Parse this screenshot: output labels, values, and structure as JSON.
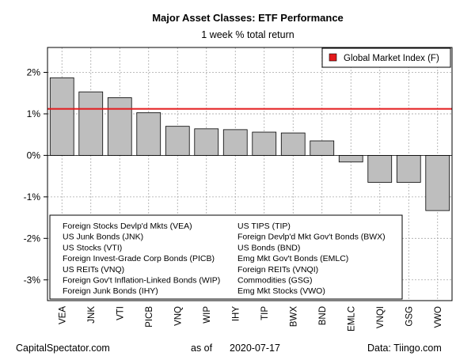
{
  "chart_data": {
    "type": "bar",
    "title": "Major Asset Classes: ETF Performance",
    "subtitle": "1 week % total return",
    "categories": [
      "VEA",
      "JNK",
      "VTI",
      "PICB",
      "VNQ",
      "WIP",
      "IHY",
      "TIP",
      "BWX",
      "BND",
      "EMLC",
      "VNQI",
      "GSG",
      "VWO"
    ],
    "values": [
      1.87,
      1.53,
      1.39,
      1.03,
      0.7,
      0.64,
      0.62,
      0.56,
      0.54,
      0.35,
      -0.16,
      -0.65,
      -0.65,
      -1.33
    ],
    "ylim": [
      -3.5,
      2.6
    ],
    "yticks": [
      -3,
      -2,
      -1,
      0,
      1,
      2
    ],
    "ytick_labels": [
      "-3%",
      "-2%",
      "-1%",
      "0%",
      "1%",
      "2%"
    ],
    "grid": true,
    "bar_color": "#bebebe",
    "reference_line": {
      "label": "Global Market Index (F)",
      "value": 1.12,
      "color": "#e41a1c"
    },
    "legend_position": "top-right",
    "key_left": [
      "Foreign Stocks Devlp'd Mkts (VEA)",
      "US Junk Bonds (JNK)",
      "US Stocks (VTI)",
      "Foreign Invest-Grade Corp Bonds (PICB)",
      "US REITs (VNQ)",
      "Foreign Gov't Inflation-Linked Bonds (WIP)",
      "Foreign Junk Bonds (IHY)"
    ],
    "key_right": [
      "US TIPS (TIP)",
      "Foreign Devlp'd Mkt Gov't Bonds (BWX)",
      "US Bonds (BND)",
      "Emg Mkt Gov't Bonds (EMLC)",
      "Foreign REITs (VNQI)",
      "Commodities (GSG)",
      "Emg Mkt Stocks (VWO)"
    ]
  },
  "footer": {
    "source_left": "CapitalSpectator.com",
    "date_prefix": "as of",
    "date": "2020-07-17",
    "source_right": "Data: Tiingo.com"
  }
}
